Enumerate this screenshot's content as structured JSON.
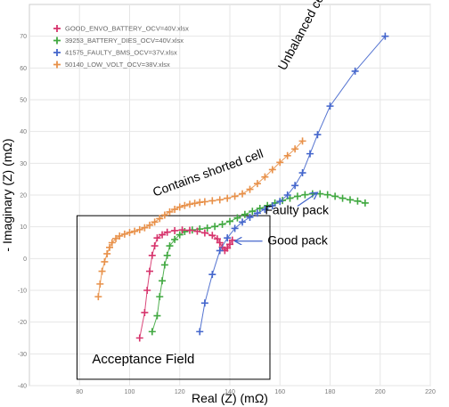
{
  "chart_data": {
    "type": "scatter",
    "xlabel": "Real (Z) (mΩ)",
    "ylabel": "- Imaginary (Z) (mΩ)",
    "xlim": [
      60,
      220
    ],
    "ylim": [
      -40,
      80
    ],
    "xticks": [
      80,
      100,
      120,
      140,
      160,
      180,
      200,
      220
    ],
    "yticks": [
      -40,
      -30,
      -20,
      -10,
      0,
      10,
      20,
      30,
      40,
      50,
      60,
      70
    ],
    "grid": true,
    "legend_position": "top-left",
    "series": [
      {
        "name": "GOOD_ENVO_BATTERY_OCV=40V.xlsx",
        "color": "#d6336c",
        "marker": "plus",
        "x": [
          104,
          106,
          107,
          108,
          109,
          110,
          111,
          113,
          115,
          118,
          121,
          124,
          127,
          130,
          133,
          135,
          136,
          137,
          138,
          139,
          140,
          141
        ],
        "y": [
          -25,
          -17,
          -10,
          -4,
          1,
          4,
          6.5,
          7.5,
          8.3,
          8.8,
          9,
          8.9,
          8.6,
          8.1,
          7.3,
          6.2,
          5,
          3.6,
          2.5,
          3.3,
          4.5,
          5.8
        ]
      },
      {
        "name": "39253_BATTERY_DIES_OCV=40V.xlsx",
        "color": "#40a840",
        "marker": "plus",
        "x": [
          109,
          111,
          112,
          113,
          114,
          115,
          116,
          118,
          120,
          122,
          125,
          128,
          131,
          134,
          137,
          140,
          143,
          146,
          149,
          152,
          155,
          158,
          161,
          164,
          167,
          170,
          173,
          176,
          179,
          182,
          185,
          188,
          191,
          194
        ],
        "y": [
          -23,
          -18,
          -12,
          -7,
          -2,
          1,
          4,
          6,
          7.5,
          8.5,
          9,
          9.3,
          9.6,
          10.1,
          10.8,
          11.7,
          12.8,
          13.9,
          14.9,
          15.8,
          16.7,
          17.5,
          18.3,
          19,
          19.6,
          20.1,
          20.4,
          20.4,
          20.1,
          19.6,
          19,
          18.5,
          18.1,
          17.5
        ]
      },
      {
        "name": "41575_FAULTY_BMS_OCV=37V.xlsx",
        "color": "#4466cc",
        "marker": "plus",
        "x": [
          128,
          130,
          133,
          136,
          139,
          142,
          145,
          148,
          151,
          154,
          157,
          160,
          163,
          166,
          169,
          172,
          175,
          180,
          190,
          202
        ],
        "y": [
          -23,
          -14,
          -5,
          2.5,
          6.5,
          9.5,
          11.5,
          13,
          14.3,
          15.5,
          16.6,
          18,
          20,
          23,
          27,
          33,
          39,
          48,
          59,
          70
        ]
      },
      {
        "name": "50140_LOW_VOLT_OCV=38V.xlsx",
        "color": "#e8914a",
        "marker": "plus",
        "x": [
          87.5,
          88.2,
          89,
          90,
          91,
          92,
          93,
          94.5,
          96,
          98,
          100,
          102,
          104,
          106,
          108,
          110,
          112,
          114,
          116,
          118,
          120,
          122,
          124,
          126,
          128,
          130,
          133,
          136,
          139,
          142,
          145,
          148,
          151,
          154,
          157,
          160,
          163,
          166,
          169
        ],
        "y": [
          -12,
          -8,
          -4,
          -1,
          1.5,
          3.5,
          5,
          6.3,
          7.1,
          7.7,
          8.2,
          8.6,
          9.1,
          9.7,
          10.5,
          11.5,
          12.6,
          13.7,
          14.7,
          15.5,
          16.2,
          16.7,
          17.1,
          17.4,
          17.7,
          17.9,
          18.2,
          18.5,
          19,
          19.6,
          20.4,
          21.8,
          23.6,
          25.7,
          28,
          30.3,
          32.4,
          34.5,
          37
        ]
      }
    ],
    "annotations": [
      {
        "text": "Unbalanced cells",
        "x": 162,
        "y": 59,
        "rotate": -62
      },
      {
        "text": "Contains shorted cell",
        "x": 110,
        "y": 19.5,
        "rotate": -20
      },
      {
        "text": "Faulty pack",
        "x": 154,
        "y": 14,
        "rotate": 0
      },
      {
        "text": "Good pack",
        "x": 155,
        "y": 4.5,
        "rotate": 0
      },
      {
        "text": "Acceptance Field",
        "x": 85,
        "y": -33,
        "rotate": 0
      }
    ],
    "arrows": [
      {
        "from": [
          167,
          16.5
        ],
        "to": [
          175,
          20.8
        ]
      },
      {
        "from": [
          153,
          5.5
        ],
        "to": [
          142,
          5.5
        ]
      }
    ],
    "region": {
      "label": "Acceptance Field",
      "x": [
        79,
        156
      ],
      "y": [
        -38,
        13.5
      ]
    }
  }
}
